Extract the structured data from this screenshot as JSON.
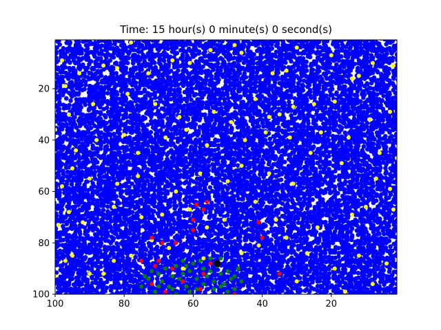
{
  "chart_data": {
    "type": "scatter",
    "title": "Time: 15 hour(s) 0 minute(s) 0 second(s)",
    "xlabel": "",
    "ylabel": "",
    "xlim": [
      100,
      1
    ],
    "ylim": [
      100,
      1
    ],
    "x_ticks": [
      100,
      80,
      60,
      40,
      20
    ],
    "y_ticks": [
      20,
      40,
      60,
      80,
      100
    ],
    "grid": false,
    "legend": "none",
    "colors": {
      "background_cells": "#0000ff",
      "yellow_cells": "#ffff00",
      "red_cells": "#ff0000",
      "green_cells": "#008000",
      "black_cell": "#000000"
    },
    "series": [
      {
        "color": "#ffff00",
        "points": [
          [
            98,
            9
          ],
          [
            97,
            19
          ],
          [
            93,
            14
          ],
          [
            86,
            11
          ],
          [
            82,
            12
          ],
          [
            78,
            2
          ],
          [
            73,
            14
          ],
          [
            66,
            9
          ],
          [
            61,
            10
          ],
          [
            55,
            5
          ],
          [
            48,
            3
          ],
          [
            46,
            6
          ],
          [
            37,
            14
          ],
          [
            33,
            13
          ],
          [
            30,
            4
          ],
          [
            20,
            7
          ],
          [
            14,
            16
          ],
          [
            12,
            15
          ],
          [
            8,
            10
          ],
          [
            2,
            11
          ],
          [
            96,
            30
          ],
          [
            89,
            26
          ],
          [
            79,
            22
          ],
          [
            71,
            26
          ],
          [
            64,
            31
          ],
          [
            54,
            29
          ],
          [
            49,
            33
          ],
          [
            42,
            24
          ],
          [
            38,
            31
          ],
          [
            35,
            30
          ],
          [
            31,
            27
          ],
          [
            25,
            26
          ],
          [
            19,
            25
          ],
          [
            9,
            32
          ],
          [
            3,
            29
          ],
          [
            100,
            36
          ],
          [
            94,
            44
          ],
          [
            88,
            40
          ],
          [
            80,
            38
          ],
          [
            76,
            45
          ],
          [
            68,
            39
          ],
          [
            62,
            36
          ],
          [
            56,
            42
          ],
          [
            45,
            40
          ],
          [
            39,
            37
          ],
          [
            32,
            39
          ],
          [
            23,
            37
          ],
          [
            15,
            39
          ],
          [
            6,
            45
          ],
          [
            1,
            47
          ],
          [
            98,
            58
          ],
          [
            95,
            51
          ],
          [
            90,
            55
          ],
          [
            82,
            57
          ],
          [
            76,
            54
          ],
          [
            65,
            60
          ],
          [
            58,
            53
          ],
          [
            50,
            56
          ],
          [
            46,
            50
          ],
          [
            38,
            53
          ],
          [
            31,
            57
          ],
          [
            26,
            45
          ],
          [
            17,
            49
          ],
          [
            7,
            55
          ],
          [
            3,
            59
          ],
          [
            99,
            73
          ],
          [
            96,
            68
          ],
          [
            92,
            72
          ],
          [
            83,
            66
          ],
          [
            75,
            70
          ],
          [
            69,
            69
          ],
          [
            61,
            67
          ],
          [
            56,
            74
          ],
          [
            51,
            71
          ],
          [
            42,
            64
          ],
          [
            36,
            71
          ],
          [
            24,
            74
          ],
          [
            14,
            69
          ],
          [
            10,
            66
          ],
          [
            2,
            67
          ],
          [
            100,
            93
          ],
          [
            97,
            87
          ],
          [
            90,
            92
          ],
          [
            83,
            87
          ],
          [
            78,
            85
          ],
          [
            72,
            79
          ],
          [
            67,
            82
          ],
          [
            57,
            86
          ],
          [
            46,
            84
          ],
          [
            41,
            81
          ],
          [
            33,
            78
          ],
          [
            27,
            84
          ],
          [
            19,
            90
          ],
          [
            12,
            85
          ],
          [
            4,
            88
          ],
          [
            95,
            85
          ],
          [
            86,
            92
          ],
          [
            63,
            90
          ],
          [
            30,
            95
          ],
          [
            16,
            99
          ],
          [
            8,
            96
          ]
        ]
      },
      {
        "color": "#ff0000",
        "points": [
          [
            59,
            65
          ],
          [
            56,
            64
          ],
          [
            57,
            67
          ],
          [
            60,
            71
          ],
          [
            60,
            75
          ],
          [
            65,
            80
          ],
          [
            69,
            80
          ],
          [
            72,
            78
          ],
          [
            75,
            87
          ],
          [
            71,
            89
          ],
          [
            66,
            90
          ],
          [
            70,
            87
          ],
          [
            41,
            72
          ],
          [
            40,
            78
          ],
          [
            35,
            92
          ],
          [
            58,
            98
          ],
          [
            57,
            92
          ],
          [
            48,
            100
          ],
          [
            68,
            99
          ],
          [
            72,
            96
          ],
          [
            63,
            95
          ],
          [
            55,
            88
          ]
        ]
      },
      {
        "color": "#008000",
        "points": [
          [
            75,
            97
          ],
          [
            73,
            94
          ],
          [
            71,
            99
          ],
          [
            69,
            95
          ],
          [
            70,
            92
          ],
          [
            67,
            97
          ],
          [
            65,
            100
          ],
          [
            64,
            94
          ],
          [
            62,
            97
          ],
          [
            61,
            91
          ],
          [
            60,
            88
          ],
          [
            58,
            87
          ],
          [
            57,
            90
          ],
          [
            56,
            93
          ],
          [
            55,
            91
          ],
          [
            54,
            95
          ],
          [
            53,
            89
          ],
          [
            52,
            92
          ],
          [
            51,
            96
          ],
          [
            50,
            91
          ],
          [
            49,
            94
          ],
          [
            48,
            98
          ],
          [
            47,
            90
          ],
          [
            52,
            86
          ],
          [
            55,
            86
          ],
          [
            59,
            94
          ],
          [
            61,
            99
          ],
          [
            63,
            92
          ],
          [
            66,
            93
          ],
          [
            68,
            90
          ],
          [
            72,
            91
          ],
          [
            74,
            93
          ],
          [
            63,
            87
          ],
          [
            65,
            89
          ],
          [
            57,
            96
          ],
          [
            50,
            99
          ],
          [
            52,
            97
          ],
          [
            48,
            93
          ],
          [
            46,
            95
          ],
          [
            59,
            98
          ],
          [
            70,
            97
          ],
          [
            66,
            98
          ],
          [
            62,
            89
          ],
          [
            54,
            98
          ]
        ]
      },
      {
        "color": "#000000",
        "size": "large",
        "points": [
          [
            53,
            88
          ]
        ]
      }
    ]
  },
  "background_field": {
    "color": "#0000ff",
    "coverage": 0.88
  }
}
